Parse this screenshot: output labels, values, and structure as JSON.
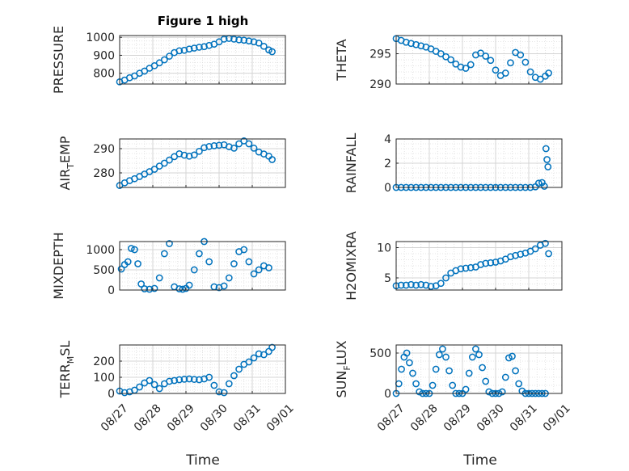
{
  "title": "Figure 1 high",
  "xlabel": "Time",
  "marker_color": "#0072BD",
  "chart_data": [
    {
      "type": "scatter",
      "ylabel": "PRESSURE",
      "ylim": [
        740,
        1010
      ],
      "yticks": [
        800,
        900,
        1000
      ],
      "xlim": [
        "08/27",
        "09/01"
      ],
      "xticklabels": [],
      "x": [
        0.0,
        0.15,
        0.3,
        0.45,
        0.6,
        0.75,
        0.9,
        1.05,
        1.2,
        1.35,
        1.5,
        1.65,
        1.8,
        1.95,
        2.1,
        2.25,
        2.4,
        2.55,
        2.7,
        2.85,
        3.0,
        3.15,
        3.3,
        3.45,
        3.6,
        3.75,
        3.9,
        4.05,
        4.2,
        4.35,
        4.5,
        4.6
      ],
      "y": [
        752,
        762,
        775,
        785,
        800,
        812,
        828,
        842,
        858,
        875,
        895,
        915,
        925,
        928,
        935,
        940,
        945,
        948,
        955,
        962,
        975,
        990,
        994,
        990,
        986,
        984,
        980,
        975,
        968,
        950,
        930,
        920
      ]
    },
    {
      "type": "scatter",
      "ylabel": "THETA",
      "ylim": [
        290,
        298
      ],
      "yticks": [
        290,
        295
      ],
      "xlim": [
        "08/27",
        "09/01"
      ],
      "xticklabels": [],
      "x": [
        0.0,
        0.15,
        0.3,
        0.45,
        0.6,
        0.75,
        0.9,
        1.05,
        1.2,
        1.35,
        1.5,
        1.65,
        1.8,
        1.95,
        2.1,
        2.25,
        2.4,
        2.55,
        2.7,
        2.85,
        3.0,
        3.15,
        3.3,
        3.45,
        3.6,
        3.75,
        3.9,
        4.05,
        4.2,
        4.35,
        4.5,
        4.6
      ],
      "y": [
        297.5,
        297.2,
        296.9,
        296.7,
        296.5,
        296.3,
        296.1,
        295.8,
        295.4,
        295.0,
        294.5,
        294.0,
        293.3,
        292.8,
        292.6,
        293.2,
        294.8,
        295.1,
        294.6,
        293.9,
        292.3,
        291.4,
        291.8,
        293.5,
        295.2,
        294.8,
        293.6,
        292.0,
        291.1,
        290.8,
        291.3,
        291.8
      ]
    },
    {
      "type": "scatter",
      "ylabel": "AIR_TEMP",
      "ylim": [
        274,
        294
      ],
      "yticks": [
        280,
        290
      ],
      "xlim": [
        "08/27",
        "09/01"
      ],
      "xticklabels": [],
      "x": [
        0.0,
        0.15,
        0.3,
        0.45,
        0.6,
        0.75,
        0.9,
        1.05,
        1.2,
        1.35,
        1.5,
        1.65,
        1.8,
        1.95,
        2.1,
        2.25,
        2.4,
        2.55,
        2.7,
        2.85,
        3.0,
        3.15,
        3.3,
        3.45,
        3.6,
        3.75,
        3.9,
        4.05,
        4.2,
        4.35,
        4.5,
        4.6
      ],
      "y": [
        274.8,
        275.9,
        276.8,
        277.6,
        278.5,
        279.5,
        280.5,
        281.5,
        282.8,
        284.0,
        285.3,
        286.7,
        287.9,
        287.3,
        286.9,
        287.4,
        288.9,
        290.4,
        290.9,
        291.2,
        291.4,
        291.6,
        290.8,
        290.2,
        292.0,
        293.2,
        292.0,
        290.2,
        288.6,
        287.8,
        286.9,
        285.5
      ]
    },
    {
      "type": "scatter",
      "ylabel": "RAINFALL",
      "ylim": [
        0,
        4
      ],
      "yticks": [
        0,
        2,
        4
      ],
      "xlim": [
        "08/27",
        "09/01"
      ],
      "xticklabels": [],
      "x": [
        0.0,
        0.15,
        0.3,
        0.45,
        0.6,
        0.75,
        0.9,
        1.05,
        1.2,
        1.35,
        1.5,
        1.65,
        1.8,
        1.95,
        2.1,
        2.25,
        2.4,
        2.55,
        2.7,
        2.85,
        3.0,
        3.15,
        3.3,
        3.45,
        3.6,
        3.75,
        3.9,
        4.05,
        4.2,
        4.3,
        4.4,
        4.47,
        4.52,
        4.55,
        4.58
      ],
      "y": [
        0,
        0,
        0,
        0,
        0,
        0,
        0,
        0,
        0,
        0,
        0,
        0,
        0,
        0,
        0,
        0,
        0,
        0,
        0,
        0,
        0,
        0,
        0,
        0,
        0,
        0,
        0,
        0,
        0.05,
        0.35,
        0.4,
        0.1,
        3.2,
        2.3,
        1.7
      ]
    },
    {
      "type": "scatter",
      "ylabel": "MIXDEPTH",
      "ylim": [
        0,
        1200
      ],
      "yticks": [
        0,
        500,
        1000
      ],
      "xlim": [
        "08/27",
        "09/01"
      ],
      "xticklabels": [],
      "x": [
        0.05,
        0.15,
        0.25,
        0.35,
        0.45,
        0.55,
        0.65,
        0.75,
        0.9,
        1.05,
        1.2,
        1.35,
        1.5,
        1.65,
        1.8,
        1.9,
        2.0,
        2.1,
        2.25,
        2.4,
        2.55,
        2.7,
        2.85,
        3.0,
        3.15,
        3.3,
        3.45,
        3.6,
        3.75,
        3.9,
        4.05,
        4.2,
        4.35,
        4.5
      ],
      "y": [
        520,
        630,
        700,
        1030,
        1000,
        650,
        150,
        30,
        20,
        40,
        300,
        900,
        1150,
        80,
        30,
        20,
        40,
        120,
        500,
        900,
        1200,
        700,
        80,
        60,
        100,
        300,
        650,
        950,
        1000,
        700,
        400,
        500,
        600,
        550
      ]
    },
    {
      "type": "scatter",
      "ylabel": "H2OMIXRA",
      "ylim": [
        3,
        11
      ],
      "yticks": [
        5,
        10
      ],
      "xlim": [
        "08/27",
        "09/01"
      ],
      "xticklabels": [],
      "x": [
        0.0,
        0.15,
        0.3,
        0.45,
        0.6,
        0.75,
        0.9,
        1.05,
        1.2,
        1.35,
        1.5,
        1.65,
        1.8,
        1.95,
        2.1,
        2.25,
        2.4,
        2.55,
        2.7,
        2.85,
        3.0,
        3.15,
        3.3,
        3.45,
        3.6,
        3.75,
        3.9,
        4.05,
        4.2,
        4.35,
        4.5,
        4.6
      ],
      "y": [
        3.7,
        3.8,
        3.8,
        3.9,
        3.8,
        3.9,
        3.8,
        3.6,
        3.7,
        4.1,
        5.0,
        5.8,
        6.2,
        6.5,
        6.6,
        6.7,
        6.8,
        7.2,
        7.4,
        7.5,
        7.6,
        7.8,
        8.1,
        8.5,
        8.7,
        8.9,
        9.1,
        9.4,
        9.8,
        10.4,
        10.7,
        9.0
      ]
    },
    {
      "type": "scatter",
      "ylabel": "TERR_MSL",
      "ylim": [
        0,
        300
      ],
      "yticks": [
        0,
        100,
        200
      ],
      "xlim": [
        "08/27",
        "09/01"
      ],
      "xticklabels": [
        "08/27",
        "08/28",
        "08/29",
        "08/30",
        "08/31",
        "09/01"
      ],
      "x": [
        0.0,
        0.15,
        0.3,
        0.45,
        0.6,
        0.75,
        0.9,
        1.05,
        1.2,
        1.35,
        1.5,
        1.65,
        1.8,
        1.95,
        2.1,
        2.25,
        2.4,
        2.55,
        2.7,
        2.85,
        3.0,
        3.15,
        3.3,
        3.45,
        3.6,
        3.75,
        3.9,
        4.05,
        4.2,
        4.35,
        4.5,
        4.6
      ],
      "y": [
        15,
        5,
        10,
        20,
        40,
        65,
        80,
        55,
        30,
        60,
        75,
        80,
        85,
        88,
        90,
        87,
        85,
        90,
        100,
        50,
        10,
        5,
        60,
        110,
        150,
        180,
        195,
        220,
        245,
        240,
        260,
        285
      ]
    },
    {
      "type": "scatter",
      "ylabel": "SUN_FLUX",
      "ylim": [
        0,
        600
      ],
      "yticks": [
        0,
        500
      ],
      "xlim": [
        "08/27",
        "09/01"
      ],
      "xticklabels": [
        "08/27",
        "08/28",
        "08/29",
        "08/30",
        "08/31",
        "09/01"
      ],
      "x": [
        0.0,
        0.08,
        0.16,
        0.24,
        0.32,
        0.4,
        0.5,
        0.6,
        0.7,
        0.8,
        0.9,
        1.0,
        1.1,
        1.2,
        1.3,
        1.4,
        1.5,
        1.6,
        1.7,
        1.8,
        1.9,
        2.0,
        2.1,
        2.2,
        2.3,
        2.4,
        2.5,
        2.6,
        2.7,
        2.8,
        2.9,
        3.0,
        3.1,
        3.2,
        3.3,
        3.4,
        3.5,
        3.6,
        3.7,
        3.8,
        3.9,
        4.0,
        4.1,
        4.2,
        4.3,
        4.4,
        4.5
      ],
      "y": [
        0,
        120,
        300,
        450,
        500,
        380,
        250,
        120,
        20,
        0,
        0,
        0,
        100,
        300,
        480,
        550,
        450,
        280,
        100,
        0,
        0,
        0,
        50,
        250,
        450,
        550,
        480,
        320,
        150,
        20,
        0,
        0,
        0,
        20,
        200,
        440,
        460,
        280,
        120,
        30,
        0,
        0,
        0,
        0,
        0,
        0,
        0
      ]
    }
  ]
}
